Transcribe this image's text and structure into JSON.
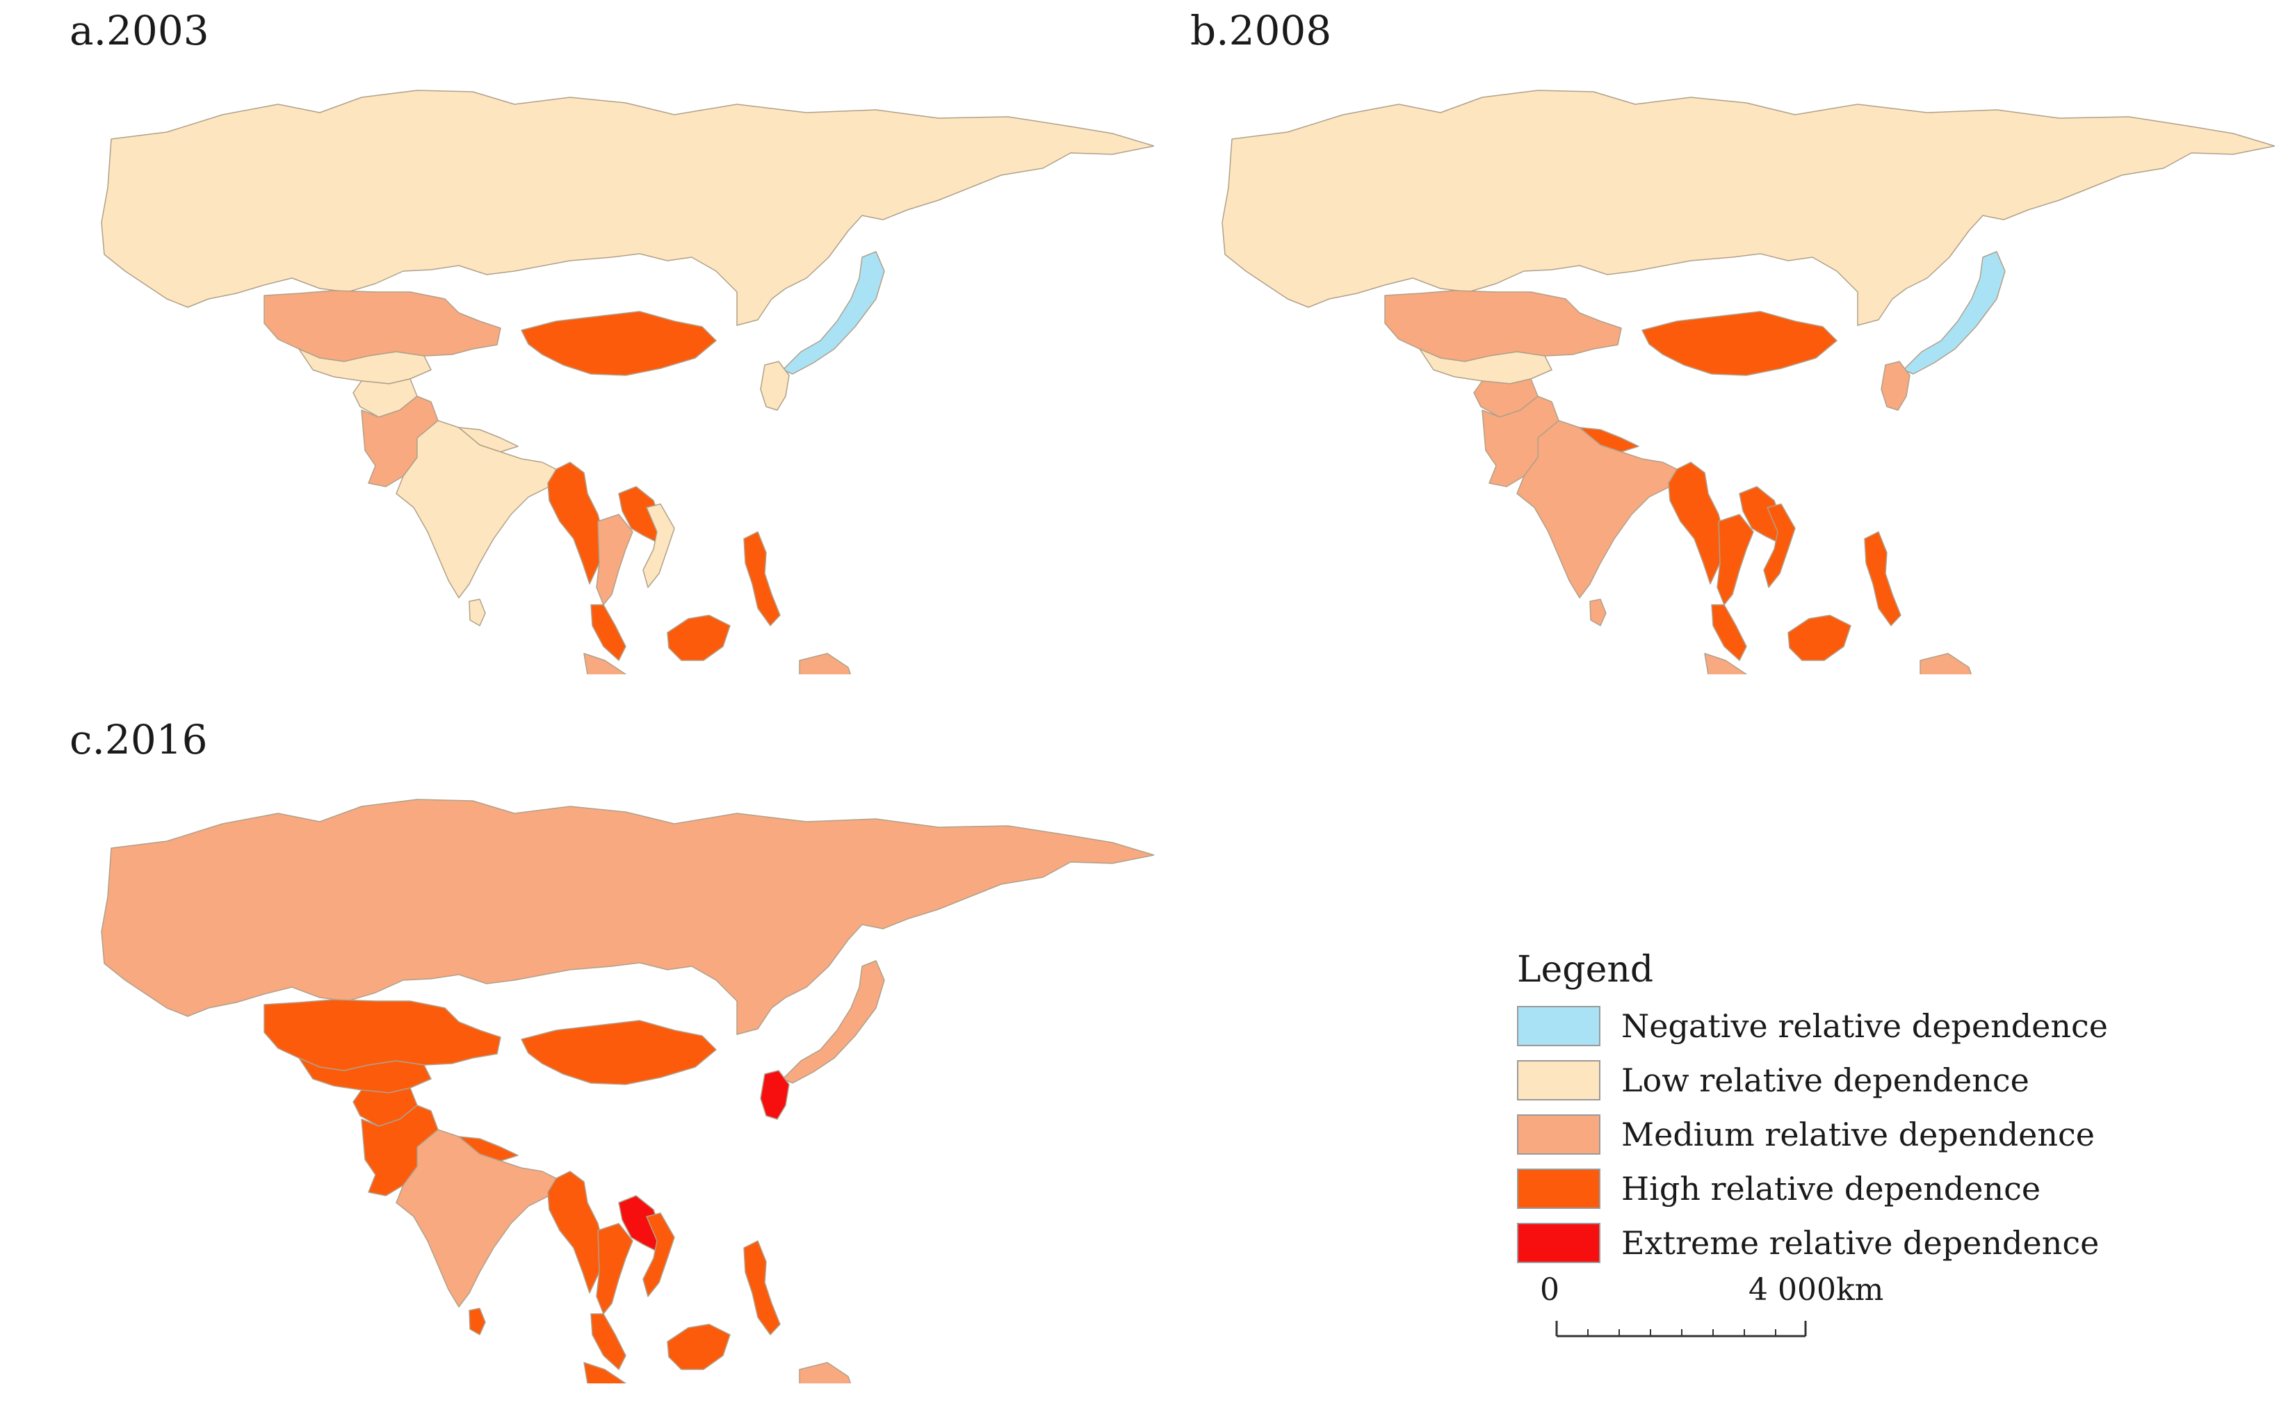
{
  "panels": [
    {
      "label": "a.2003",
      "regions": {
        "russia": "low",
        "kazakhstan": "medium",
        "centralasia": "low",
        "mongolia": "high",
        "pakistan": "medium",
        "afghanistan": "low",
        "india": "low",
        "nepal": "low",
        "myanmar": "high",
        "laos": "high",
        "thailand": "medium",
        "vietnam": "low",
        "malaysia": "high",
        "indonesia": "medium",
        "borneo": "high",
        "philippines": "high",
        "korea": "low",
        "japan": "negative",
        "srilanka": "low",
        "png": "medium"
      }
    },
    {
      "label": "b.2008",
      "regions": {
        "russia": "low",
        "kazakhstan": "medium",
        "centralasia": "low",
        "mongolia": "high",
        "pakistan": "medium",
        "afghanistan": "medium",
        "india": "medium",
        "nepal": "high",
        "myanmar": "high",
        "laos": "high",
        "thailand": "high",
        "vietnam": "high",
        "malaysia": "high",
        "indonesia": "medium",
        "borneo": "high",
        "philippines": "high",
        "korea": "medium",
        "japan": "negative",
        "srilanka": "medium",
        "png": "medium"
      }
    },
    {
      "label": "c.2016",
      "regions": {
        "russia": "medium",
        "kazakhstan": "high",
        "centralasia": "high",
        "mongolia": "high",
        "pakistan": "high",
        "afghanistan": "high",
        "india": "medium",
        "nepal": "high",
        "myanmar": "high",
        "laos": "extreme",
        "thailand": "high",
        "vietnam": "high",
        "malaysia": "high",
        "indonesia": "high",
        "borneo": "high",
        "philippines": "high",
        "korea": "extreme",
        "japan": "medium",
        "srilanka": "high",
        "png": "medium"
      }
    }
  ],
  "legend": {
    "title": "Legend",
    "items": [
      {
        "key": "negative",
        "label": "Negative relative dependence",
        "color": "#a9e2f5"
      },
      {
        "key": "low",
        "label": "Low relative dependence",
        "color": "#fde6bf"
      },
      {
        "key": "medium",
        "label": "Medium relative dependence",
        "color": "#f8a97f"
      },
      {
        "key": "high",
        "label": "High relative dependence",
        "color": "#fc5b0c"
      },
      {
        "key": "extreme",
        "label": "Extreme relative dependence",
        "color": "#f70f0f"
      }
    ]
  },
  "scalebar": {
    "start_label": "0",
    "end_label": "4 000km"
  }
}
